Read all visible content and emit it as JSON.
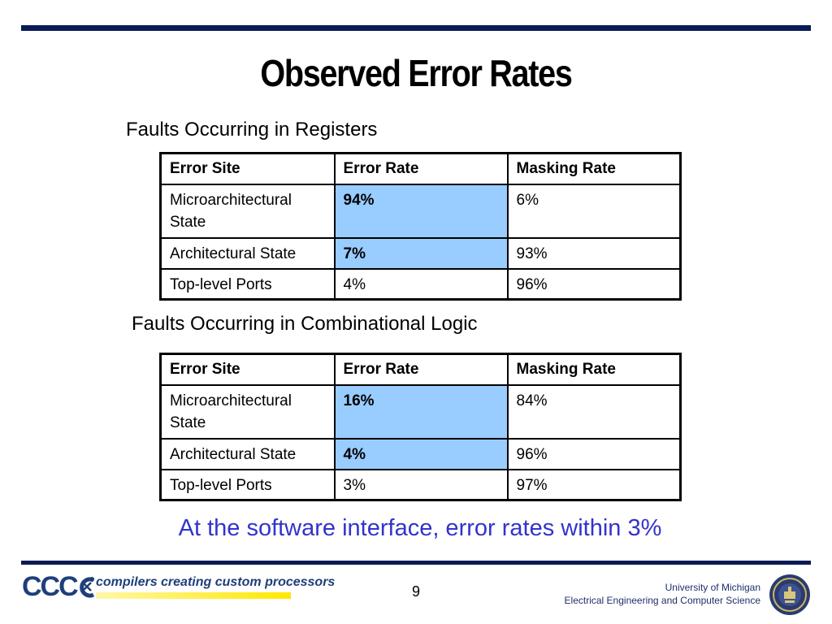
{
  "title": "Observed Error Rates",
  "section1": {
    "heading": "Faults Occurring in Registers",
    "header": [
      "Error Site",
      "Error Rate",
      "Masking Rate"
    ],
    "rows": [
      [
        "Microarchitectural State",
        "94%",
        "6%"
      ],
      [
        "Architectural State",
        "7%",
        "93%"
      ],
      [
        "Top-level Ports",
        "4%",
        "96%"
      ]
    ]
  },
  "section2": {
    "heading": "Faults Occurring in Combinational Logic",
    "header": [
      "Error Site",
      "Error Rate",
      "Masking Rate"
    ],
    "rows": [
      [
        "Microarchitectural State",
        "16%",
        "84%"
      ],
      [
        "Architectural State",
        "4%",
        "96%"
      ],
      [
        "Top-level Ports",
        "3%",
        "97%"
      ]
    ]
  },
  "conclusion": "At the software interface, error rates within 3%",
  "footer": {
    "logo_text": "CCC",
    "tagline": "compilers creating custom processors",
    "page_number": "9",
    "affiliation_line1": "University of Michigan",
    "affiliation_line2": "Electrical Engineering and Computer Science"
  },
  "colors": {
    "highlight": "#99ccff",
    "rule": "#0b1a55",
    "conclusion_text": "#3333cc"
  },
  "icons": [
    "ccc-logo-icon",
    "university-seal-icon"
  ]
}
